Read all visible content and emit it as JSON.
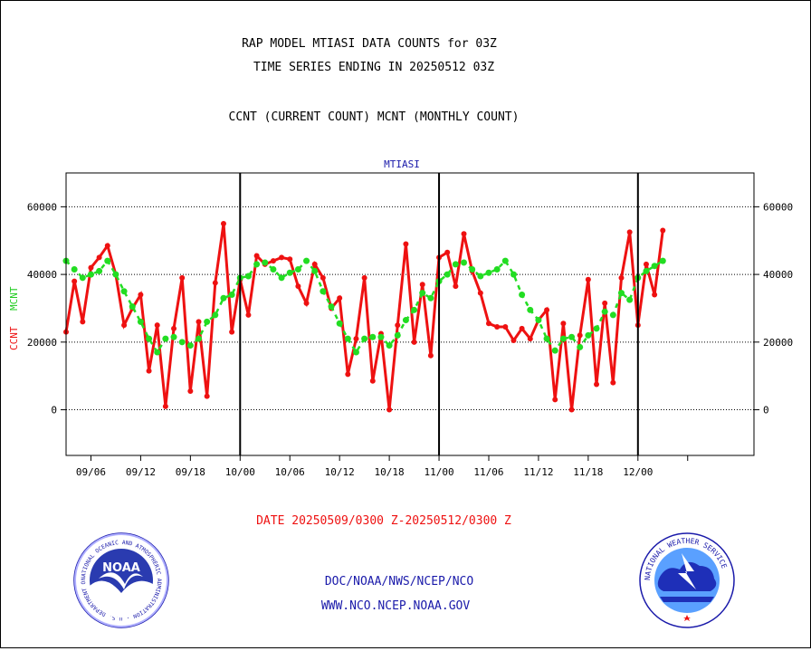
{
  "header": {
    "title_line1": "RAP MODEL MTIASI DATA COUNTS for 03Z",
    "title_line2": "TIME SERIES ENDING IN 20250512 03Z",
    "subtitle": "CCNT (CURRENT COUNT) MCNT (MONTHLY COUNT)"
  },
  "footer": {
    "date_range": "DATE 20250509/0300 Z-20250512/0300 Z",
    "org": "DOC/NOAA/NWS/NCEP/NCO",
    "url": "WWW.NCO.NCEP.NOAA.GOV"
  },
  "logos": {
    "noaa_center": "NOAA",
    "noaa_ring": "NATIONAL OCEANIC AND ATMOSPHERIC ADMINISTRATION · U.S. DEPARTMENT OF COMMERCE",
    "nws_ring": "NATIONAL WEATHER SERVICE"
  },
  "colors": {
    "ccnt": "#ee1111",
    "mcnt": "#22dd22",
    "label_blue": "#1a1aaa",
    "footer_red": "#ee1111",
    "footer_blue": "#1a1aaa"
  },
  "chart_data": {
    "type": "line",
    "title": "MTIASI",
    "ylabel_ccnt": "CCNT",
    "ylabel_mcnt": "MCNT",
    "ylim": [
      -13500,
      70000
    ],
    "yticks": [
      0,
      20000,
      40000,
      60000
    ],
    "ytick_labels": [
      "0",
      "20000",
      "40000",
      "60000"
    ],
    "xlim": [
      0,
      83
    ],
    "xticks": [
      3,
      9,
      15,
      21,
      27,
      33,
      39,
      45,
      51,
      57,
      63,
      69,
      75
    ],
    "xtick_labels": [
      "09/06",
      "09/12",
      "09/18",
      "10/00",
      "10/06",
      "10/12",
      "10/18",
      "11/00",
      "11/06",
      "11/12",
      "11/18",
      "12/00"
    ],
    "xtick_label_at": [
      3,
      9,
      15,
      21,
      27,
      33,
      39,
      45,
      51,
      57,
      63,
      69
    ],
    "month_dividers": [
      21,
      45,
      69
    ],
    "grid": true,
    "series": [
      {
        "name": "CCNT",
        "values": [
          23000,
          38000,
          26000,
          42000,
          45000,
          48500,
          40000,
          25000,
          30000,
          34000,
          11500,
          25000,
          1000,
          24000,
          39000,
          5500,
          26000,
          4000,
          37500,
          55000,
          23000,
          38500,
          28000,
          45500,
          43000,
          44000,
          45000,
          44500,
          36500,
          31500,
          43000,
          39000,
          30000,
          33000,
          10500,
          21000,
          39000,
          8500,
          22500,
          0,
          25000,
          49000,
          20000,
          37000,
          16000,
          45000,
          46500,
          36500,
          52000,
          41000,
          34500,
          25500,
          24500,
          24500,
          20500,
          24000,
          21000,
          26500,
          29500,
          3000,
          25500,
          0,
          22000,
          38500,
          7500,
          31500,
          8000,
          39000,
          52500,
          25000,
          43000,
          34000,
          53000
        ]
      },
      {
        "name": "MCNT",
        "values": [
          44000,
          41500,
          39000,
          40000,
          41000,
          44000,
          40000,
          35000,
          30500,
          26000,
          21000,
          17000,
          21000,
          21500,
          20000,
          19000,
          21000,
          26000,
          28000,
          33000,
          34000,
          39000,
          39500,
          43000,
          43500,
          41500,
          39000,
          40500,
          41500,
          44000,
          41000,
          35000,
          30500,
          25500,
          21000,
          17000,
          21000,
          21500,
          21500,
          19000,
          22000,
          26500,
          29500,
          34500,
          33000,
          38000,
          40000,
          43000,
          43500,
          41500,
          39500,
          40500,
          41500,
          44000,
          40000,
          34000,
          29500,
          26500,
          21000,
          17500,
          21000,
          21500,
          18500,
          22000,
          24000,
          29000,
          28000,
          34500,
          32500,
          39000,
          41000,
          42500,
          44000
        ]
      }
    ]
  }
}
